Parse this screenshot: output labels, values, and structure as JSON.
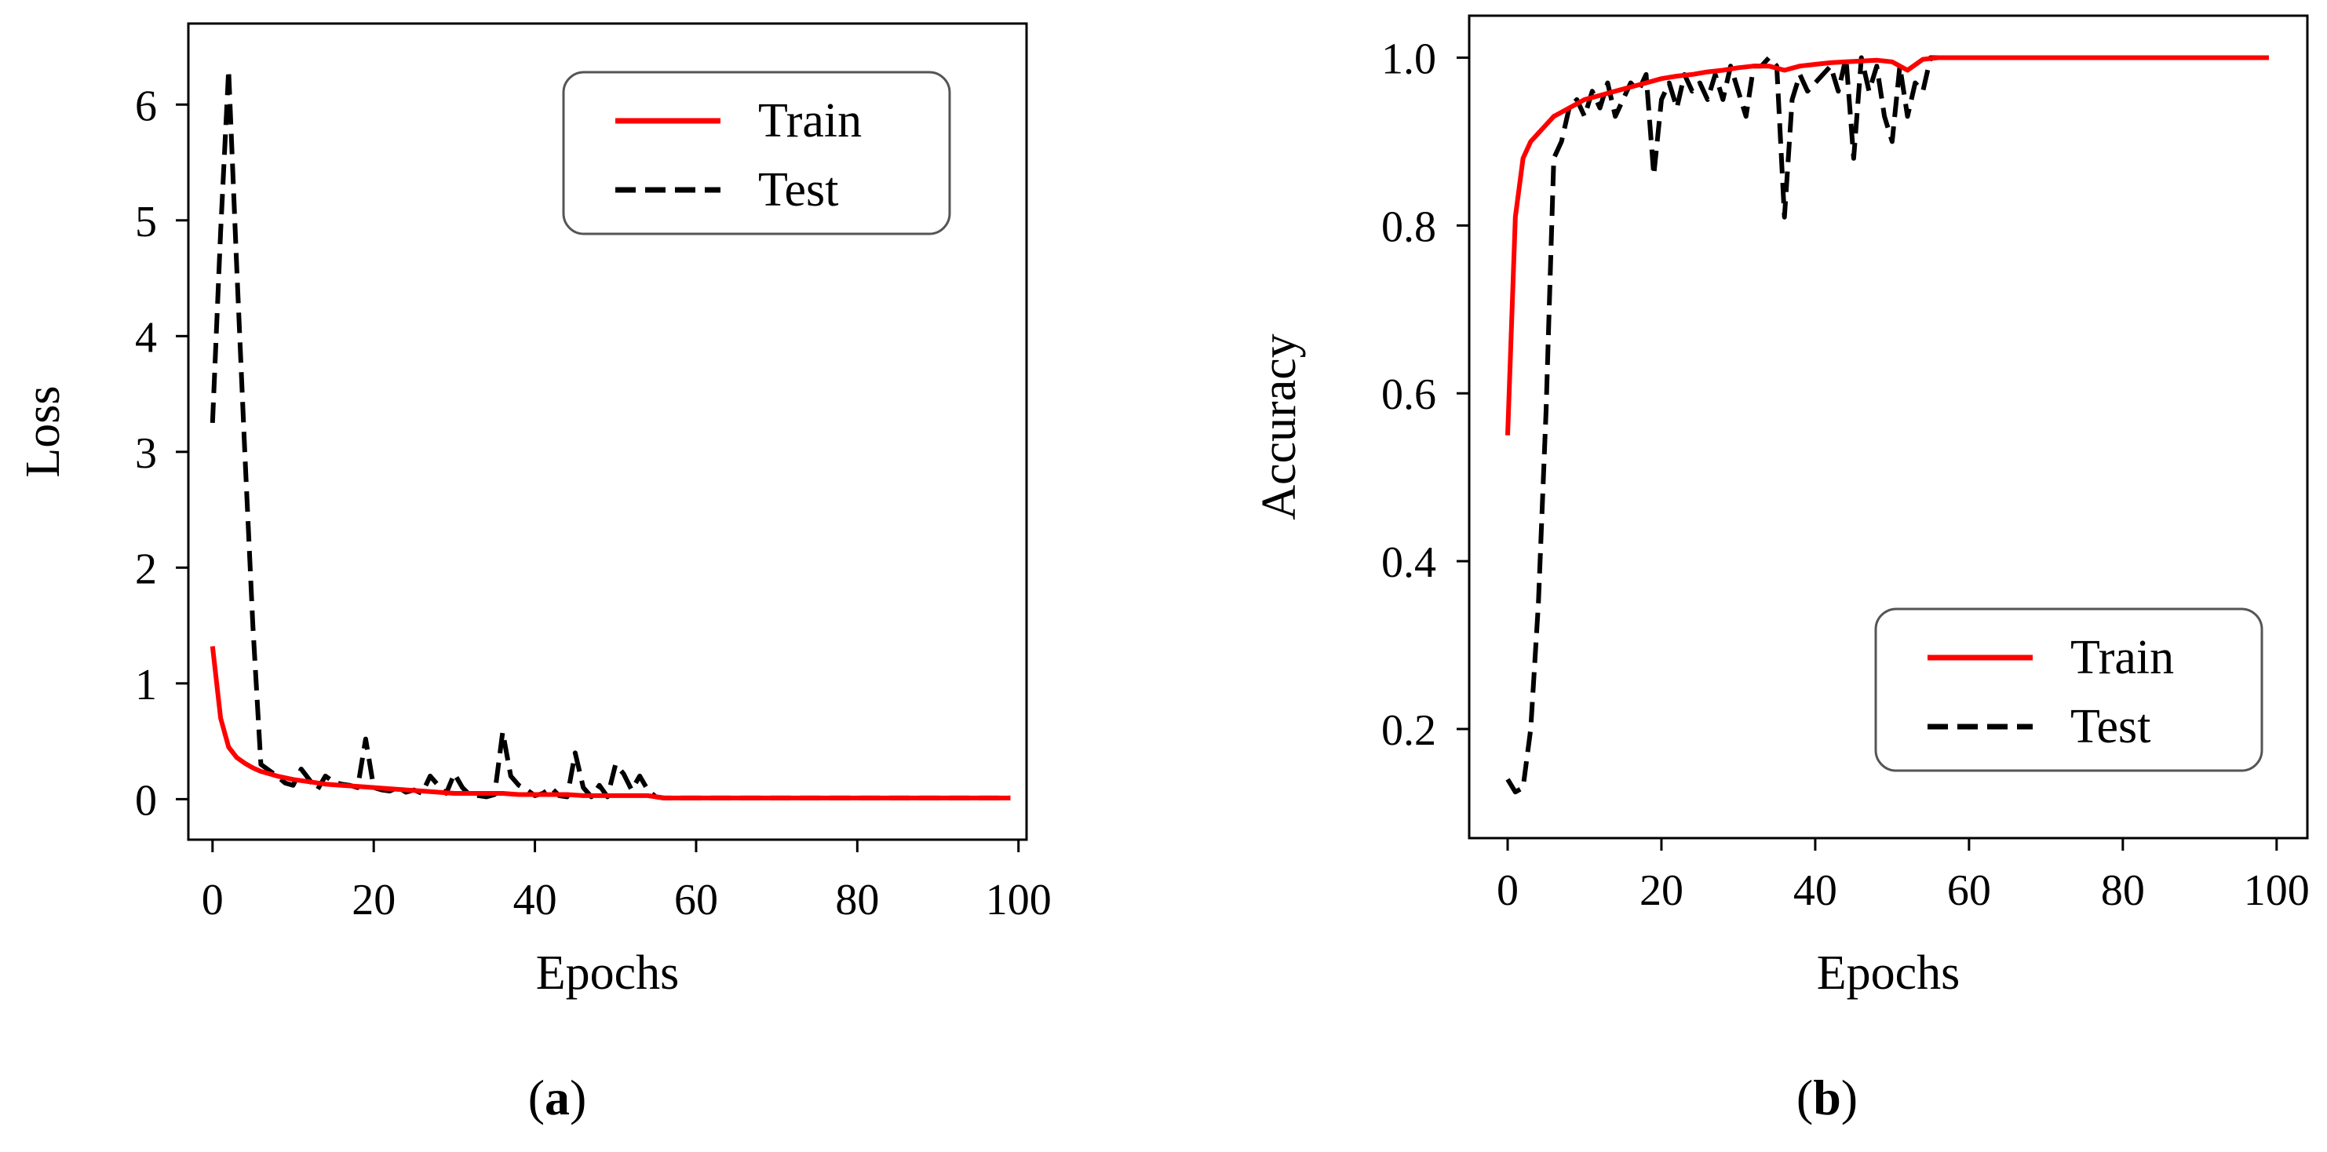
{
  "colors": {
    "train": "#ff0000",
    "test": "#000000",
    "frame": "#000000",
    "legend_border": "#555555"
  },
  "chart_data": [
    {
      "type": "line",
      "panel_label": "a",
      "title": "",
      "xlabel": "Epochs",
      "ylabel": "Loss",
      "xlim": [
        -3,
        101
      ],
      "ylim": [
        -0.35,
        6.7
      ],
      "xticks": [
        0,
        20,
        40,
        60,
        80,
        100
      ],
      "yticks": [
        0,
        1,
        2,
        3,
        4,
        5,
        6
      ],
      "grid": false,
      "legend_position": "top-right",
      "series": [
        {
          "name": "Train",
          "style": "solid",
          "x": [
            0,
            1,
            2,
            3,
            4,
            5,
            6,
            7,
            8,
            10,
            12,
            14,
            16,
            18,
            20,
            22,
            24,
            26,
            28,
            30,
            32,
            34,
            36,
            38,
            40,
            42,
            44,
            46,
            48,
            50,
            52,
            54,
            55,
            56,
            58,
            60,
            70,
            80,
            90,
            99
          ],
          "y": [
            1.32,
            0.7,
            0.45,
            0.36,
            0.31,
            0.27,
            0.24,
            0.22,
            0.2,
            0.17,
            0.15,
            0.13,
            0.12,
            0.11,
            0.1,
            0.09,
            0.08,
            0.07,
            0.06,
            0.05,
            0.05,
            0.05,
            0.05,
            0.04,
            0.04,
            0.04,
            0.04,
            0.03,
            0.03,
            0.03,
            0.03,
            0.03,
            0.02,
            0.01,
            0.01,
            0.01,
            0.01,
            0.01,
            0.01,
            0.01
          ]
        },
        {
          "name": "Test",
          "style": "dashed",
          "x": [
            0,
            1,
            2,
            3,
            4,
            5,
            6,
            7,
            8,
            9,
            10,
            11,
            12,
            13,
            14,
            15,
            16,
            17,
            18,
            19,
            20,
            21,
            22,
            23,
            24,
            25,
            26,
            27,
            28,
            29,
            30,
            31,
            32,
            33,
            34,
            35,
            36,
            37,
            38,
            39,
            40,
            41,
            42,
            43,
            44,
            45,
            46,
            47,
            48,
            49,
            50,
            51,
            52,
            53,
            54,
            55,
            56,
            60,
            70,
            80,
            90,
            99
          ],
          "y": [
            3.25,
            4.9,
            6.3,
            4.6,
            3.0,
            1.5,
            0.3,
            0.25,
            0.2,
            0.14,
            0.12,
            0.26,
            0.17,
            0.08,
            0.2,
            0.15,
            0.13,
            0.12,
            0.1,
            0.52,
            0.1,
            0.08,
            0.07,
            0.1,
            0.06,
            0.08,
            0.05,
            0.2,
            0.12,
            0.05,
            0.22,
            0.1,
            0.03,
            0.03,
            0.02,
            0.04,
            0.58,
            0.2,
            0.12,
            0.08,
            0.03,
            0.05,
            0.1,
            0.03,
            0.02,
            0.4,
            0.1,
            0.02,
            0.12,
            0.02,
            0.3,
            0.22,
            0.08,
            0.2,
            0.08,
            0.02,
            0.01,
            0.01,
            0.01,
            0.01,
            0.01,
            0.01
          ]
        }
      ]
    },
    {
      "type": "line",
      "panel_label": "b",
      "title": "",
      "xlabel": "Epochs",
      "ylabel": "Accuracy",
      "xlim": [
        -5,
        104
      ],
      "ylim": [
        0.07,
        1.05
      ],
      "xticks": [
        0,
        20,
        40,
        60,
        80,
        100
      ],
      "yticks": [
        0.2,
        0.4,
        0.6,
        0.8,
        1.0
      ],
      "ytick_labels": [
        "0.2",
        "0.4",
        "0.6",
        "0.8",
        "1.0"
      ],
      "grid": false,
      "legend_position": "bottom-right",
      "series": [
        {
          "name": "Train",
          "style": "solid",
          "x": [
            0,
            1,
            2,
            3,
            4,
            5,
            6,
            7,
            8,
            10,
            12,
            14,
            16,
            18,
            20,
            22,
            24,
            26,
            28,
            30,
            32,
            34,
            36,
            38,
            40,
            42,
            44,
            46,
            48,
            50,
            52,
            54,
            56,
            60,
            70,
            80,
            90,
            99
          ],
          "y": [
            0.55,
            0.81,
            0.88,
            0.9,
            0.91,
            0.92,
            0.93,
            0.935,
            0.94,
            0.95,
            0.955,
            0.96,
            0.965,
            0.97,
            0.975,
            0.978,
            0.98,
            0.983,
            0.985,
            0.988,
            0.99,
            0.99,
            0.985,
            0.99,
            0.992,
            0.994,
            0.995,
            0.996,
            0.997,
            0.995,
            0.985,
            0.998,
            1.0,
            1.0,
            1.0,
            1.0,
            1.0,
            1.0
          ]
        },
        {
          "name": "Test",
          "style": "dashed",
          "x": [
            0,
            1,
            2,
            3,
            4,
            5,
            6,
            7,
            8,
            9,
            10,
            11,
            12,
            13,
            14,
            15,
            16,
            17,
            18,
            19,
            20,
            21,
            22,
            23,
            24,
            25,
            26,
            27,
            28,
            29,
            30,
            31,
            32,
            33,
            34,
            35,
            36,
            37,
            38,
            39,
            40,
            41,
            42,
            43,
            44,
            45,
            46,
            47,
            48,
            49,
            50,
            51,
            52,
            53,
            54,
            55,
            56,
            60,
            70,
            80,
            90,
            99
          ],
          "y": [
            0.14,
            0.125,
            0.13,
            0.2,
            0.35,
            0.58,
            0.88,
            0.9,
            0.94,
            0.95,
            0.93,
            0.96,
            0.94,
            0.97,
            0.93,
            0.95,
            0.97,
            0.96,
            0.98,
            0.86,
            0.95,
            0.97,
            0.94,
            0.98,
            0.96,
            0.97,
            0.95,
            0.98,
            0.95,
            0.99,
            0.96,
            0.93,
            0.99,
            0.99,
            1.0,
            0.99,
            0.81,
            0.95,
            0.98,
            0.96,
            0.97,
            0.98,
            0.99,
            0.96,
            1.0,
            0.88,
            1.0,
            0.96,
            0.99,
            0.93,
            0.9,
            0.99,
            0.93,
            0.97,
            0.96,
            1.0,
            1.0,
            1.0,
            1.0,
            1.0,
            1.0,
            1.0
          ]
        }
      ]
    }
  ]
}
